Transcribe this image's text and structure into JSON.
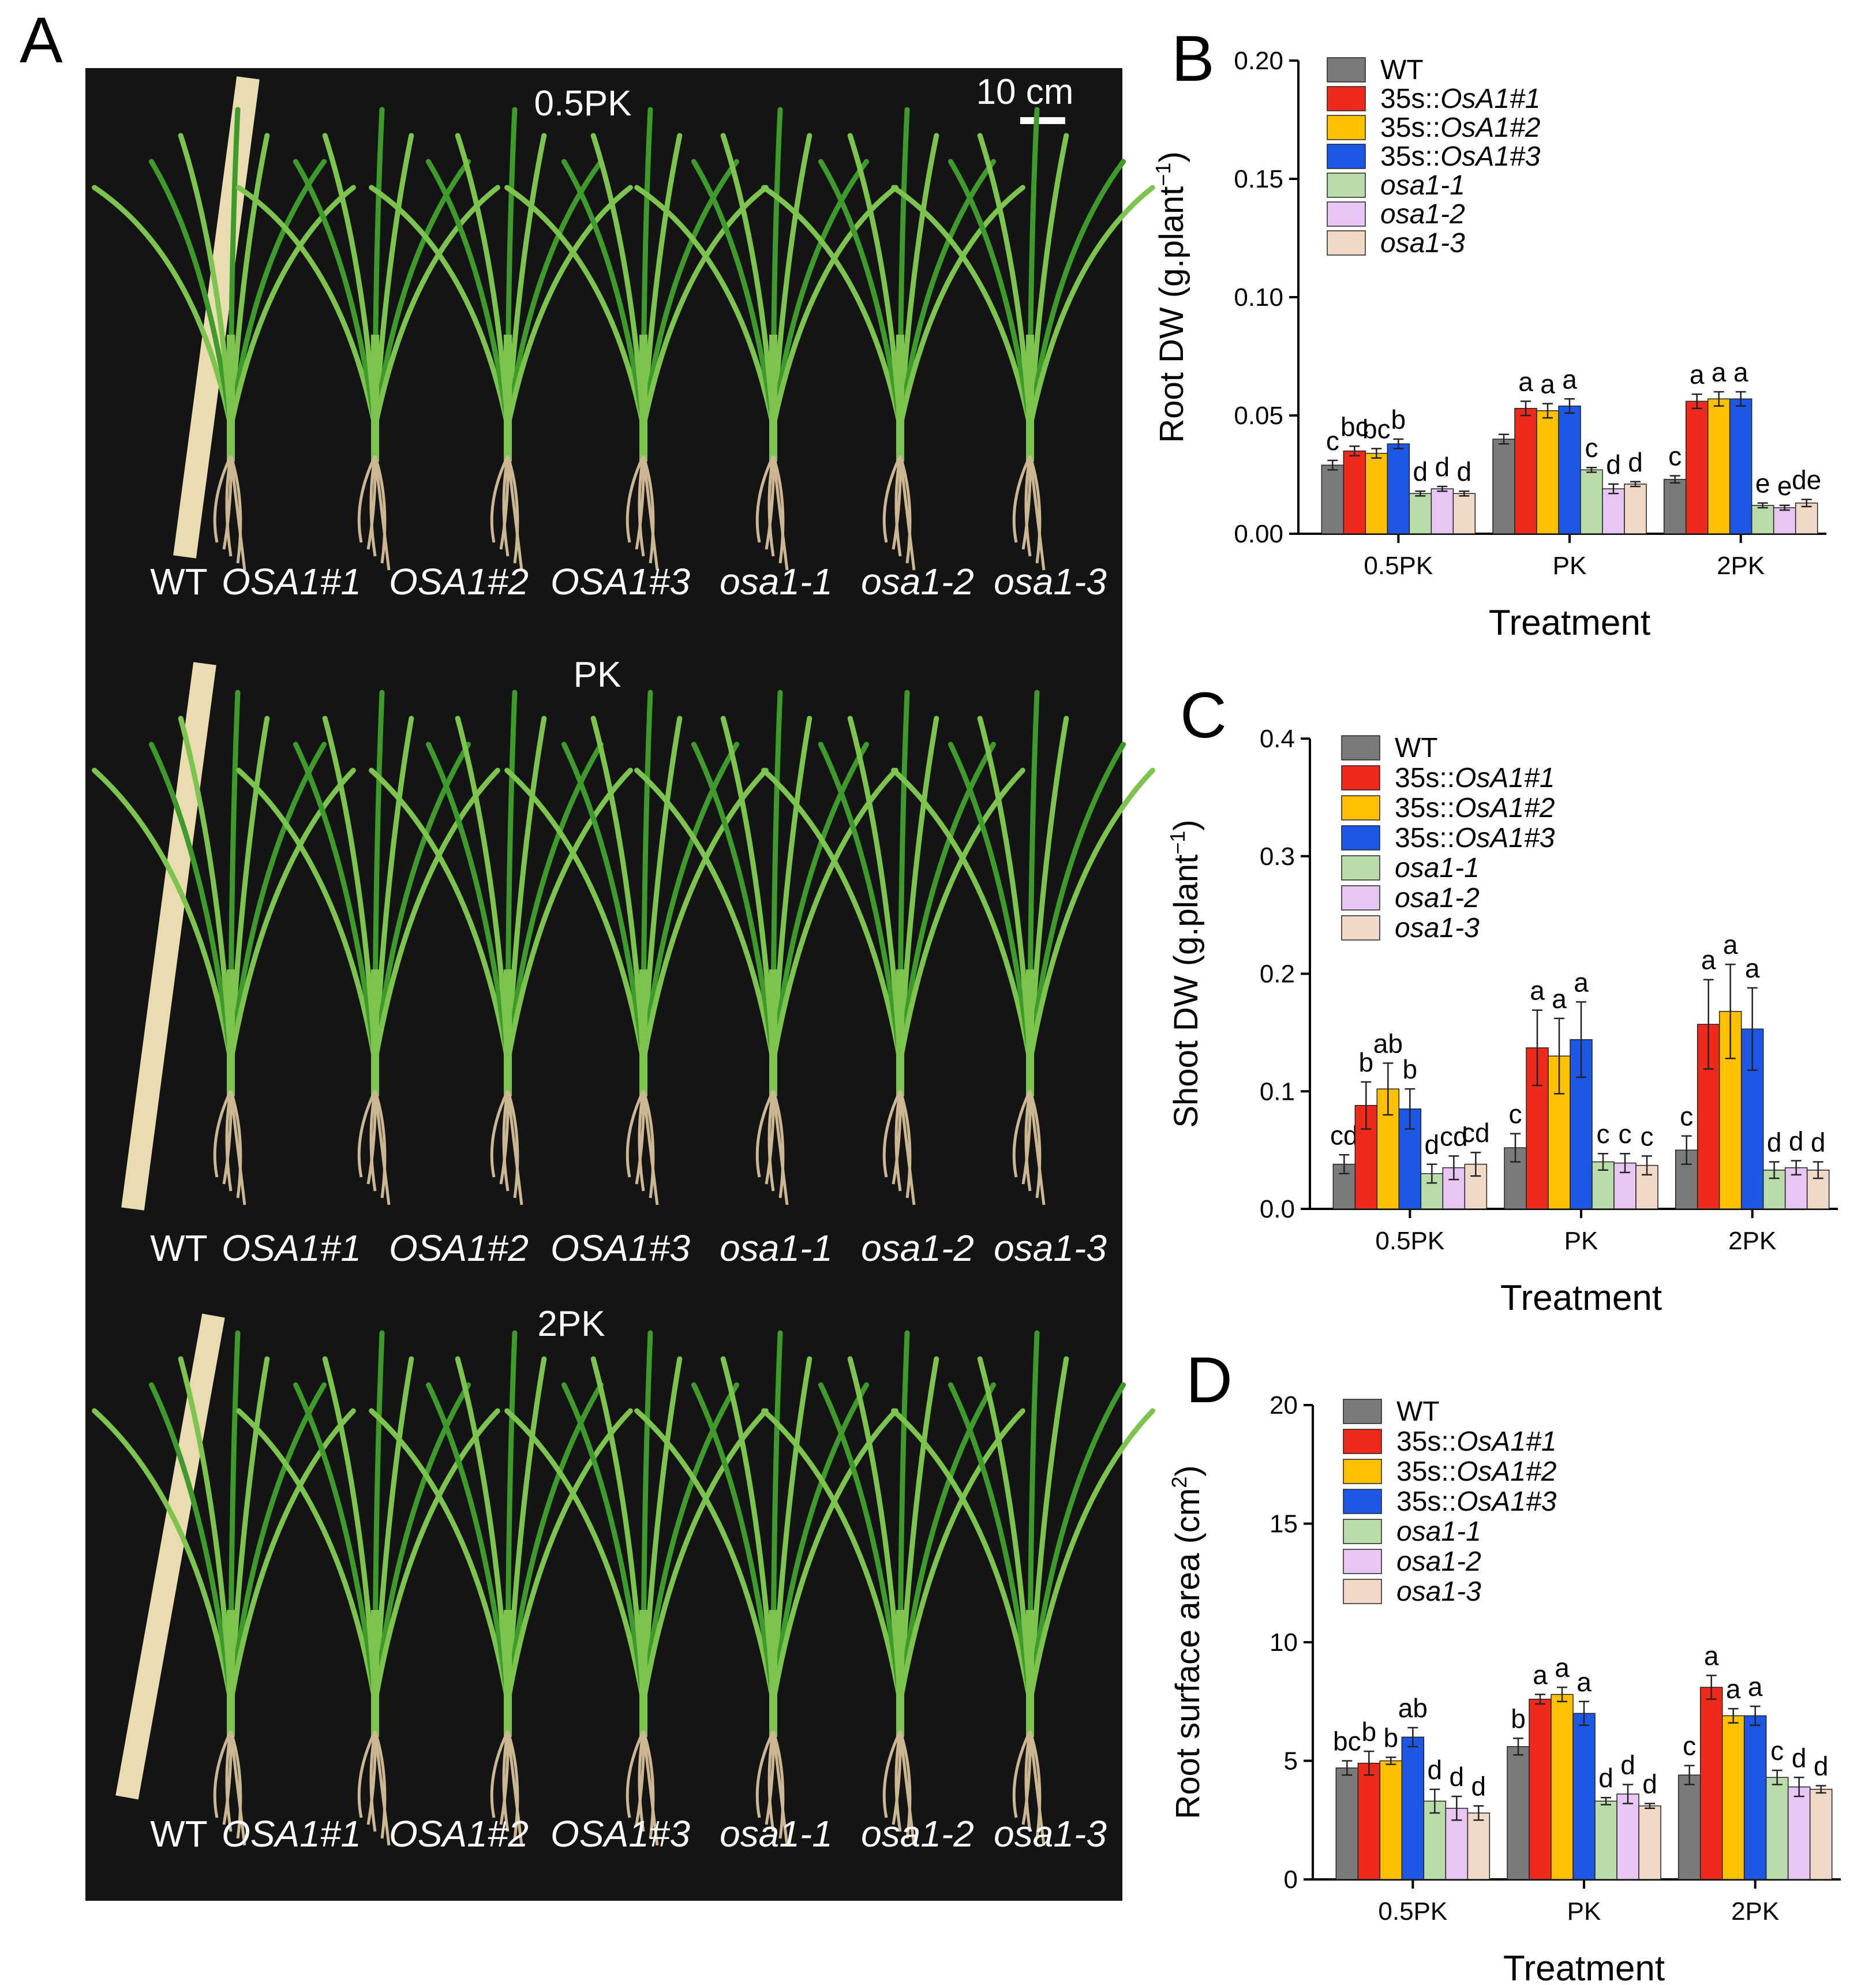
{
  "panel_letters": {
    "a": "A",
    "b": "B",
    "c": "C",
    "d": "D"
  },
  "photo": {
    "scale_label": "10 cm",
    "rows": [
      {
        "treatment": "0.5PK",
        "genotypes": [
          "WT",
          "OSA1#1",
          "OSA1#2",
          "OSA1#3",
          "osa1-1",
          "osa1-2",
          "osa1-3"
        ]
      },
      {
        "treatment": "PK",
        "genotypes": [
          "WT",
          "OSA1#1",
          "OSA1#2",
          "OSA1#3",
          "osa1-1",
          "osa1-2",
          "osa1-3"
        ]
      },
      {
        "treatment": "2PK",
        "genotypes": [
          "WT",
          "OSA1#1",
          "OSA1#2",
          "OSA1#3",
          "osa1-1",
          "osa1-2",
          "osa1-3"
        ]
      }
    ],
    "colors": {
      "background": "#141414",
      "leaf": "#3f9a2c",
      "leaf_light": "#7cc44e",
      "root": "#cbb892",
      "ruler": "#e8dcb0"
    }
  },
  "legend": [
    {
      "prefix": "WT",
      "italic": "",
      "color": "#7a7a7a"
    },
    {
      "prefix": "35s::",
      "italic": "OsA1#1",
      "color": "#ee2a1c"
    },
    {
      "prefix": "35s::",
      "italic": "OsA1#2",
      "color": "#ffc000"
    },
    {
      "prefix": "35s::",
      "italic": "OsA1#3",
      "color": "#1d57e6"
    },
    {
      "prefix": "",
      "italic": "osa1-1",
      "color": "#b9dcaa"
    },
    {
      "prefix": "",
      "italic": "osa1-2",
      "color": "#e8c6f4"
    },
    {
      "prefix": "",
      "italic": "osa1-3",
      "color": "#f0d9c6"
    }
  ],
  "chart_data": [
    {
      "panel": "B",
      "type": "bar",
      "categories": [
        "0.5PK",
        "PK",
        "2PK"
      ],
      "ylabel": "Root DW (g.plant",
      "ylabel_sup": "−1",
      "ylabel_end": ")",
      "xlabel": "Treatment",
      "ylim": [
        0,
        0.2
      ],
      "yticks": [
        "0.00",
        "0.05",
        "0.10",
        "0.15",
        "0.20"
      ],
      "ytick_values": [
        0,
        0.05,
        0.1,
        0.15,
        0.2
      ],
      "series": [
        {
          "name": "WT",
          "values": [
            0.029,
            0.04,
            0.023
          ],
          "err": [
            0.002,
            0.002,
            0.0015
          ],
          "sig": [
            "c",
            "",
            "c"
          ]
        },
        {
          "name": "35s::OsA1#1",
          "values": [
            0.035,
            0.053,
            0.056
          ],
          "err": [
            0.002,
            0.003,
            0.003
          ],
          "sig": [
            "bc",
            "a",
            "a"
          ]
        },
        {
          "name": "35s::OsA1#2",
          "values": [
            0.034,
            0.052,
            0.057
          ],
          "err": [
            0.002,
            0.003,
            0.003
          ],
          "sig": [
            "bc",
            "a",
            "a"
          ]
        },
        {
          "name": "35s::OsA1#3",
          "values": [
            0.038,
            0.054,
            0.057
          ],
          "err": [
            0.002,
            0.003,
            0.003
          ],
          "sig": [
            "b",
            "a",
            "a"
          ]
        },
        {
          "name": "osa1-1",
          "values": [
            0.017,
            0.027,
            0.012
          ],
          "err": [
            0.001,
            0.001,
            0.001
          ],
          "sig": [
            "d",
            "c",
            "e"
          ]
        },
        {
          "name": "osa1-2",
          "values": [
            0.019,
            0.019,
            0.011
          ],
          "err": [
            0.001,
            0.002,
            0.001
          ],
          "sig": [
            "d",
            "d",
            "e"
          ]
        },
        {
          "name": "osa1-3",
          "values": [
            0.017,
            0.021,
            0.013
          ],
          "err": [
            0.001,
            0.001,
            0.0015
          ],
          "sig": [
            "d",
            "d",
            "de"
          ]
        }
      ]
    },
    {
      "panel": "C",
      "type": "bar",
      "categories": [
        "0.5PK",
        "PK",
        "2PK"
      ],
      "ylabel": "Shoot DW (g.plant",
      "ylabel_sup": "−1",
      "ylabel_end": ")",
      "xlabel": "Treatment",
      "ylim": [
        0,
        0.4
      ],
      "yticks": [
        "0.0",
        "0.1",
        "0.2",
        "0.3",
        "0.4"
      ],
      "ytick_values": [
        0,
        0.1,
        0.2,
        0.3,
        0.4
      ],
      "series": [
        {
          "name": "WT",
          "values": [
            0.038,
            0.052,
            0.05
          ],
          "err": [
            0.008,
            0.012,
            0.012
          ],
          "sig": [
            "cd",
            "c",
            "c"
          ]
        },
        {
          "name": "35s::OsA1#1",
          "values": [
            0.088,
            0.137,
            0.157
          ],
          "err": [
            0.02,
            0.032,
            0.038
          ],
          "sig": [
            "b",
            "a",
            "a"
          ]
        },
        {
          "name": "35s::OsA1#2",
          "values": [
            0.102,
            0.13,
            0.168
          ],
          "err": [
            0.022,
            0.032,
            0.04
          ],
          "sig": [
            "ab",
            "a",
            "a"
          ]
        },
        {
          "name": "35s::OsA1#3",
          "values": [
            0.085,
            0.144,
            0.153
          ],
          "err": [
            0.017,
            0.032,
            0.035
          ],
          "sig": [
            "b",
            "a",
            "a"
          ]
        },
        {
          "name": "osa1-1",
          "values": [
            0.03,
            0.04,
            0.033
          ],
          "err": [
            0.008,
            0.007,
            0.007
          ],
          "sig": [
            "d",
            "c",
            "d"
          ]
        },
        {
          "name": "osa1-2",
          "values": [
            0.035,
            0.039,
            0.035
          ],
          "err": [
            0.01,
            0.008,
            0.006
          ],
          "sig": [
            "cd",
            "c",
            "d"
          ]
        },
        {
          "name": "osa1-3",
          "values": [
            0.038,
            0.037,
            0.033
          ],
          "err": [
            0.01,
            0.008,
            0.007
          ],
          "sig": [
            "cd",
            "c",
            "d"
          ]
        }
      ]
    },
    {
      "panel": "D",
      "type": "bar",
      "categories": [
        "0.5PK",
        "PK",
        "2PK"
      ],
      "ylabel": "Root surface area (cm",
      "ylabel_sup": "2",
      "ylabel_end": ")",
      "xlabel": "Treatment",
      "ylim": [
        0,
        20
      ],
      "yticks": [
        "0",
        "5",
        "10",
        "15",
        "20"
      ],
      "ytick_values": [
        0,
        5,
        10,
        15,
        20
      ],
      "series": [
        {
          "name": "WT",
          "values": [
            4.7,
            5.6,
            4.4
          ],
          "err": [
            0.3,
            0.35,
            0.4
          ],
          "sig": [
            "bc",
            "b",
            "c"
          ]
        },
        {
          "name": "35s::OsA1#1",
          "values": [
            4.9,
            7.6,
            8.1
          ],
          "err": [
            0.5,
            0.2,
            0.5
          ],
          "sig": [
            "b",
            "a",
            "a"
          ]
        },
        {
          "name": "35s::OsA1#2",
          "values": [
            5.0,
            7.8,
            6.9
          ],
          "err": [
            0.15,
            0.3,
            0.3
          ],
          "sig": [
            "b",
            "a",
            "a"
          ]
        },
        {
          "name": "35s::OsA1#3",
          "values": [
            6.0,
            7.0,
            6.9
          ],
          "err": [
            0.4,
            0.5,
            0.4
          ],
          "sig": [
            "ab",
            "a",
            "a"
          ]
        },
        {
          "name": "osa1-1",
          "values": [
            3.3,
            3.3,
            4.3
          ],
          "err": [
            0.5,
            0.15,
            0.3
          ],
          "sig": [
            "d",
            "d",
            "c"
          ]
        },
        {
          "name": "osa1-2",
          "values": [
            3.0,
            3.6,
            3.9
          ],
          "err": [
            0.5,
            0.4,
            0.4
          ],
          "sig": [
            "d",
            "d",
            "d"
          ]
        },
        {
          "name": "osa1-3",
          "values": [
            2.8,
            3.1,
            3.8
          ],
          "err": [
            0.3,
            0.1,
            0.15
          ],
          "sig": [
            "d",
            "d",
            "d"
          ]
        }
      ]
    }
  ]
}
